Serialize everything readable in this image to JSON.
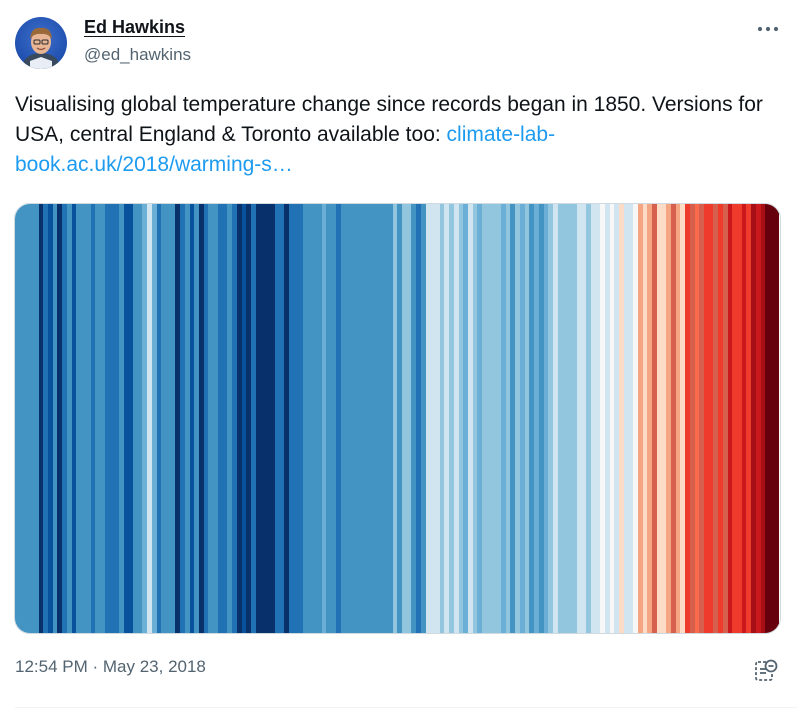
{
  "author": {
    "name": "Ed Hawkins",
    "handle": "@ed_hawkins"
  },
  "tweet": {
    "text": "Visualising global temperature change since records began in 1850. Versions for USA, central England & Toronto available too: ",
    "link_text": "climate-lab-book.ac.uk/2018/warming-s…",
    "link_color": "#1d9bf0"
  },
  "media": {
    "icon": "warming-stripes-image",
    "stripe_colors": [
      "#4393c3",
      "#4393c3",
      "#4393c3",
      "#4393c3",
      "#4393c3",
      "#08306b",
      "#2171b5",
      "#08519c",
      "#4393c3",
      "#08306b",
      "#2171b5",
      "#4393c3",
      "#08519c",
      "#4393c3",
      "#4393c3",
      "#4393c3",
      "#2171b5",
      "#4393c3",
      "#4393c3",
      "#2171b5",
      "#2171b5",
      "#2171b5",
      "#4393c3",
      "#08519c",
      "#08519c",
      "#4393c3",
      "#4393c3",
      "#6baed6",
      "#d1e5f0",
      "#6baed6",
      "#2171b5",
      "#4393c3",
      "#4393c3",
      "#4393c3",
      "#08306b",
      "#2171b5",
      "#4393c3",
      "#08519c",
      "#4393c3",
      "#08306b",
      "#2171b5",
      "#4393c3",
      "#4393c3",
      "#2171b5",
      "#2171b5",
      "#4393c3",
      "#2171b5",
      "#08306b",
      "#08519c",
      "#08306b",
      "#2171b5",
      "#08306b",
      "#08306b",
      "#08306b",
      "#08306b",
      "#2171b5",
      "#2171b5",
      "#08306b",
      "#2171b5",
      "#2171b5",
      "#2171b5",
      "#4393c3",
      "#4393c3",
      "#4393c3",
      "#4393c3",
      "#6baed6",
      "#4393c3",
      "#4393c3",
      "#2171b5",
      "#4393c3",
      "#4393c3",
      "#4393c3",
      "#4393c3",
      "#4393c3",
      "#4393c3",
      "#4393c3",
      "#4393c3",
      "#4393c3",
      "#4393c3",
      "#4393c3",
      "#92c5de",
      "#4393c3",
      "#92c5de",
      "#92c5de",
      "#4393c3",
      "#2171b5",
      "#4393c3",
      "#d1e5f0",
      "#d1e5f0",
      "#d1e5f0",
      "#92c5de",
      "#d1e5f0",
      "#92c5de",
      "#d1e5f0",
      "#92c5de",
      "#6baed6",
      "#d1e5f0",
      "#92c5de",
      "#6baed6",
      "#92c5de",
      "#92c5de",
      "#92c5de",
      "#92c5de",
      "#6baed6",
      "#92c5de",
      "#4393c3",
      "#92c5de",
      "#6baed6",
      "#92c5de",
      "#4393c3",
      "#6baed6",
      "#4393c3",
      "#6baed6",
      "#92c5de",
      "#d1e5f0",
      "#92c5de",
      "#92c5de",
      "#92c5de",
      "#92c5de",
      "#d1e5f0",
      "#d1e5f0",
      "#92c5de",
      "#d1e5f0",
      "#d1e5f0",
      "#f7f7f7",
      "#d1e5f0",
      "#f7f7f7",
      "#d1e5f0",
      "#fddbc7",
      "#d1e5f0",
      "#d1e5f0",
      "#f7f7f7",
      "#f4a582",
      "#fddbc7",
      "#f4a582",
      "#d6604d",
      "#fddbc7",
      "#fddbc7",
      "#f4a582",
      "#d6604d",
      "#f4a582",
      "#fddbc7",
      "#ef3b2c",
      "#d6604d",
      "#fb6a4a",
      "#d6604d",
      "#ef3b2c",
      "#ef3b2c",
      "#d6604d",
      "#ef3b2c",
      "#d6604d",
      "#cb181d",
      "#ef3b2c",
      "#ef3b2c",
      "#cb181d",
      "#ef3b2c",
      "#a50f15",
      "#cb181d",
      "#a50f15",
      "#67000d",
      "#67000d",
      "#67000d"
    ]
  },
  "meta": {
    "timestamp": "12:54 PM · May 23, 2018",
    "views_icon": "view-count-icon",
    "more_icon": "more-options-icon"
  }
}
